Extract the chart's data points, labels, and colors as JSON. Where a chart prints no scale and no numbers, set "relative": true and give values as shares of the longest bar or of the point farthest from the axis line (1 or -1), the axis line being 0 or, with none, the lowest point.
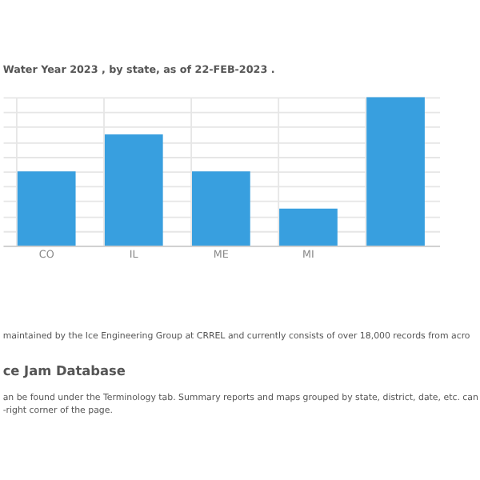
{
  "chart_data": {
    "type": "bar",
    "title": "Water Year 2023 , by state, as of 22-FEB-2023 .",
    "categories": [
      "CO",
      "IL",
      "ME",
      "MI",
      null
    ],
    "values": [
      0.5,
      0.75,
      0.5,
      0.25,
      1
    ],
    "color": "#389fdf",
    "relative": true,
    "grid": true,
    "annotations": [
      "maintained by the Ice Engineering Group at CRREL and currently consists of over 18,000 records from acro",
      "ce Jam Database",
      "an be found under the Terminology tab. Summary reports and maps grouped by state, district, date, etc. can",
      "-right corner of the page."
    ]
  }
}
